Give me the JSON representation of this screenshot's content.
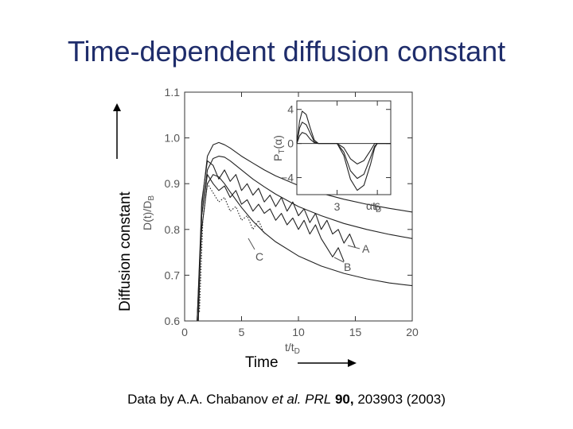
{
  "slide": {
    "title": "Time-dependent diffusion constant",
    "y_outer_label": "Diffusion constant",
    "x_outer_label": "Time",
    "caption": {
      "prefix": "Data by A.A. Chabanov ",
      "etal": "et al.",
      "journal": "PRL",
      "volume": "90,",
      "rest": "203903 (2003)"
    }
  },
  "chart_data": [
    {
      "type": "line",
      "xlabel": "t/t",
      "xlabel_sub": "D",
      "ylabel": "D(t)/D",
      "ylabel_sub": "B",
      "xlim": [
        0,
        20
      ],
      "ylim": [
        0.6,
        1.1
      ],
      "x_ticks": [
        0,
        5,
        10,
        15,
        20
      ],
      "x_tick_labels": [
        "0",
        "5",
        "10",
        "15",
        "20"
      ],
      "y_ticks": [
        0.6,
        0.7,
        0.8,
        0.9,
        1.0,
        1.1
      ],
      "y_tick_labels": [
        "0.6",
        "0.7",
        "0.8",
        "0.9",
        "1.0",
        "1.1"
      ],
      "curve_labels": [
        "A",
        "B",
        "C"
      ],
      "series": [
        {
          "style": "solid",
          "x": [
            1.1,
            1.5,
            2,
            2.5,
            3,
            3.5,
            4,
            5,
            6,
            7,
            8,
            10,
            12,
            14,
            16,
            18,
            20
          ],
          "y": [
            0.6,
            0.85,
            0.96,
            0.985,
            0.99,
            0.985,
            0.978,
            0.96,
            0.945,
            0.93,
            0.917,
            0.896,
            0.879,
            0.866,
            0.855,
            0.846,
            0.838
          ]
        },
        {
          "style": "solid",
          "x": [
            1.1,
            1.5,
            2,
            2.5,
            3,
            3.5,
            4,
            5,
            6,
            7,
            8,
            10,
            12,
            14,
            16,
            18,
            20
          ],
          "y": [
            0.6,
            0.83,
            0.93,
            0.955,
            0.96,
            0.958,
            0.95,
            0.93,
            0.91,
            0.893,
            0.877,
            0.85,
            0.83,
            0.813,
            0.8,
            0.789,
            0.78
          ]
        },
        {
          "style": "solid",
          "x": [
            1.1,
            1.5,
            2,
            2.5,
            3,
            3.5,
            4,
            5,
            6,
            7,
            8,
            10,
            12,
            14,
            16,
            18,
            20
          ],
          "y": [
            0.6,
            0.8,
            0.9,
            0.92,
            0.915,
            0.9,
            0.882,
            0.848,
            0.818,
            0.793,
            0.773,
            0.742,
            0.72,
            0.704,
            0.692,
            0.683,
            0.677
          ]
        },
        {
          "label": "A",
          "style": "data",
          "x": [
            1.2,
            1.5,
            2,
            2.5,
            3,
            3.5,
            4,
            4.5,
            5,
            5.5,
            6,
            6.5,
            7,
            7.5,
            8,
            8.5,
            9,
            9.5,
            10,
            10.5,
            11,
            11.5,
            12,
            12.5,
            13,
            13.5,
            14,
            14.5,
            15
          ],
          "y": [
            0.6,
            0.86,
            0.95,
            0.94,
            0.91,
            0.93,
            0.905,
            0.92,
            0.885,
            0.9,
            0.875,
            0.89,
            0.86,
            0.875,
            0.85,
            0.87,
            0.84,
            0.86,
            0.83,
            0.845,
            0.815,
            0.835,
            0.8,
            0.82,
            0.79,
            0.8,
            0.77,
            0.79,
            0.76
          ]
        },
        {
          "label": "B",
          "style": "data",
          "x": [
            1.2,
            1.5,
            2,
            2.5,
            3,
            3.5,
            4,
            4.5,
            5,
            5.5,
            6,
            6.5,
            7,
            7.5,
            8,
            8.5,
            9,
            9.5,
            10,
            10.5,
            11,
            11.5,
            12,
            12.5,
            13,
            13.5,
            14
          ],
          "y": [
            0.6,
            0.83,
            0.92,
            0.9,
            0.885,
            0.895,
            0.87,
            0.885,
            0.855,
            0.865,
            0.84,
            0.855,
            0.835,
            0.845,
            0.82,
            0.835,
            0.81,
            0.825,
            0.8,
            0.82,
            0.79,
            0.81,
            0.78,
            0.76,
            0.74,
            0.76,
            0.73
          ]
        },
        {
          "label": "C",
          "style": "dotted",
          "x": [
            1.3,
            1.6,
            2,
            2.5,
            3,
            3.5,
            4,
            4.5,
            5,
            5.5,
            6,
            6.5,
            7
          ],
          "y": [
            0.62,
            0.82,
            0.9,
            0.88,
            0.86,
            0.87,
            0.84,
            0.85,
            0.82,
            0.83,
            0.8,
            0.82,
            0.79
          ]
        }
      ]
    },
    {
      "type": "line",
      "xlabel": "αt",
      "xlabel_sub": "D",
      "ylabel": "P",
      "ylabel_sub": "T",
      "ylabel_suffix": "(α)",
      "xlim": [
        0,
        7
      ],
      "ylim": [
        -6,
        5
      ],
      "x_ticks": [
        3,
        6
      ],
      "x_tick_labels": [
        "3",
        "6"
      ],
      "y_ticks": [
        4,
        0,
        -4
      ],
      "y_tick_labels": [
        "4",
        "0",
        "−4"
      ],
      "series": [
        {
          "x": [
            0,
            0.2,
            0.4,
            0.7,
            1,
            1.3,
            1.6,
            1.8,
            2,
            2.5,
            3,
            3.5,
            4,
            4.5,
            5,
            5.5,
            5.8,
            6,
            7
          ],
          "y": [
            0,
            2.6,
            3.8,
            3.4,
            1.8,
            0.4,
            0,
            0,
            0,
            0,
            0,
            -0.5,
            -1.8,
            -2.4,
            -2.0,
            -0.8,
            0,
            0,
            0
          ]
        },
        {
          "x": [
            0,
            0.2,
            0.4,
            0.7,
            1,
            1.3,
            1.6,
            1.8,
            2,
            2.5,
            3,
            3.5,
            4,
            4.5,
            5,
            5.5,
            5.8,
            6,
            7
          ],
          "y": [
            0,
            1.8,
            2.5,
            2.2,
            1.2,
            0.2,
            0,
            0,
            0,
            0,
            0,
            -1.0,
            -3.2,
            -4.1,
            -3.6,
            -1.6,
            -0.3,
            0,
            0
          ]
        },
        {
          "x": [
            0,
            0.2,
            0.4,
            0.7,
            1,
            1.3,
            1.6,
            1.8,
            2,
            2.5,
            3,
            3.5,
            4,
            4.5,
            5,
            5.5,
            5.8,
            6,
            7
          ],
          "y": [
            0,
            0.9,
            1.3,
            1.1,
            0.5,
            0.1,
            0,
            0,
            0,
            0,
            0,
            -1.4,
            -4.2,
            -5.5,
            -4.9,
            -2.4,
            -0.5,
            0,
            0
          ]
        }
      ]
    }
  ]
}
